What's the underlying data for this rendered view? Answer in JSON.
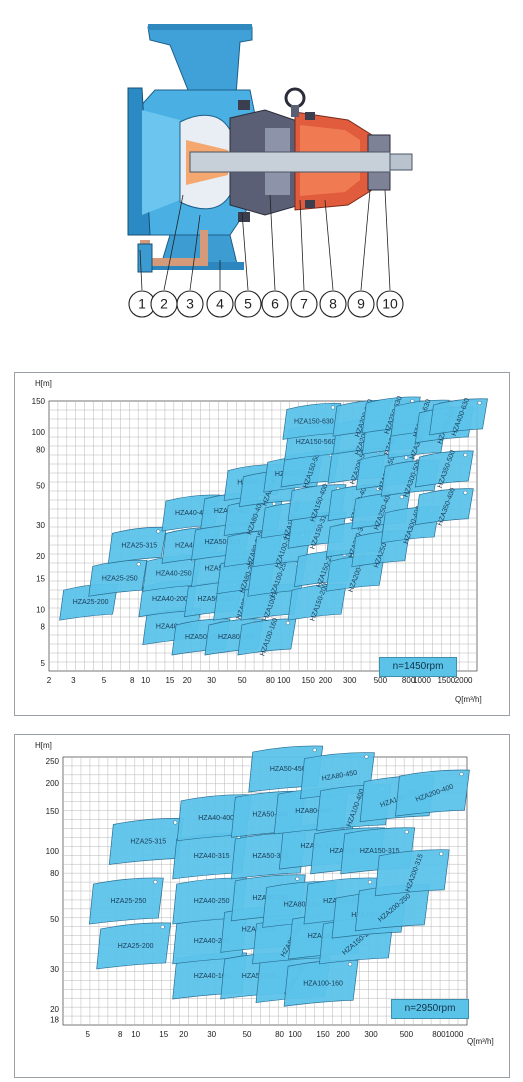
{
  "diagram": {
    "callouts": [
      "1",
      "2",
      "3",
      "4",
      "5",
      "6",
      "7",
      "8",
      "9",
      "10"
    ]
  },
  "chart1450": {
    "speed_label": "n=1450rpm",
    "y_axis_label": "H[m]",
    "x_axis_label": "Q[m³/h]",
    "y_ticks": [
      "150",
      "100",
      "80",
      "50",
      "30",
      "20",
      "15",
      "10",
      "8",
      "5"
    ],
    "x_ticks": [
      "2",
      "3",
      "5",
      "8",
      "10",
      "15",
      "20",
      "30",
      "50",
      "80",
      "100",
      "150",
      "200",
      "300",
      "500",
      "800",
      "1000",
      "1500",
      "2000"
    ],
    "models": [
      "HZA25-200",
      "HZA25-250",
      "HZA25-315",
      "HZA40-160",
      "HZA40-200",
      "HZA40-250",
      "HZA40-315",
      "HZA40-400",
      "HZA50-160",
      "HZA50-200",
      "HZA50-250",
      "HZA50-315",
      "HZA50-400",
      "HZA50-450",
      "HZA80-160",
      "HZA80-200",
      "HZA80-250",
      "HZA80-315",
      "HZA80-400",
      "HZA80-450",
      "HZA100-160",
      "HZA100-200",
      "HZA100-250",
      "HZA100-315",
      "HZA100-400",
      "HZA100-500",
      "HZA150-200",
      "HZA150-250",
      "HZA150-315",
      "HZA150-400",
      "HZA150-500",
      "HZA150-560",
      "HZA150-630",
      "HZA200-250",
      "HZA200-315",
      "HZA200-400",
      "HZA200-500",
      "HZA200-560",
      "HZA200-630",
      "HZA250-315",
      "HZA250-400",
      "HZA250-500",
      "HZA250-560",
      "HZA250-630",
      "HZA300-400",
      "HZA300-500",
      "HZA300-560",
      "HZA300-630",
      "HZA350-400",
      "HZA350-500",
      "HZA350-630",
      "HZA400-630"
    ]
  },
  "chart2950": {
    "speed_label": "n=2950rpm",
    "y_axis_label": "H[m]",
    "x_axis_label": "Q[m³/h]",
    "y_ticks": [
      "250",
      "200",
      "150",
      "100",
      "80",
      "50",
      "30",
      "20",
      "18"
    ],
    "x_ticks": [
      "5",
      "8",
      "10",
      "15",
      "20",
      "30",
      "50",
      "80",
      "100",
      "150",
      "200",
      "300",
      "500",
      "800",
      "1000"
    ],
    "models": [
      "HZA25-200",
      "HZA25-250",
      "HZA25-315",
      "HZA40-160",
      "HZA40-200",
      "HZA40-250",
      "HZA40-315",
      "HZA40-400",
      "HZA50-160",
      "HZA50-200",
      "HZA50-250",
      "HZA50-315",
      "HZA50-400",
      "HZA50-450",
      "HZA80-160",
      "HZA80-200",
      "HZA80-250",
      "HZA80-315",
      "HZA80-400",
      "HZA80-450",
      "HZA100-160",
      "HZA100-200",
      "HZA100-250",
      "HZA100-315",
      "HZA100-400",
      "HZA150-200",
      "HZA150-250",
      "HZA150-315",
      "HZA150-400",
      "HZA200-250",
      "HZA200-315",
      "HZA200-400"
    ]
  }
}
